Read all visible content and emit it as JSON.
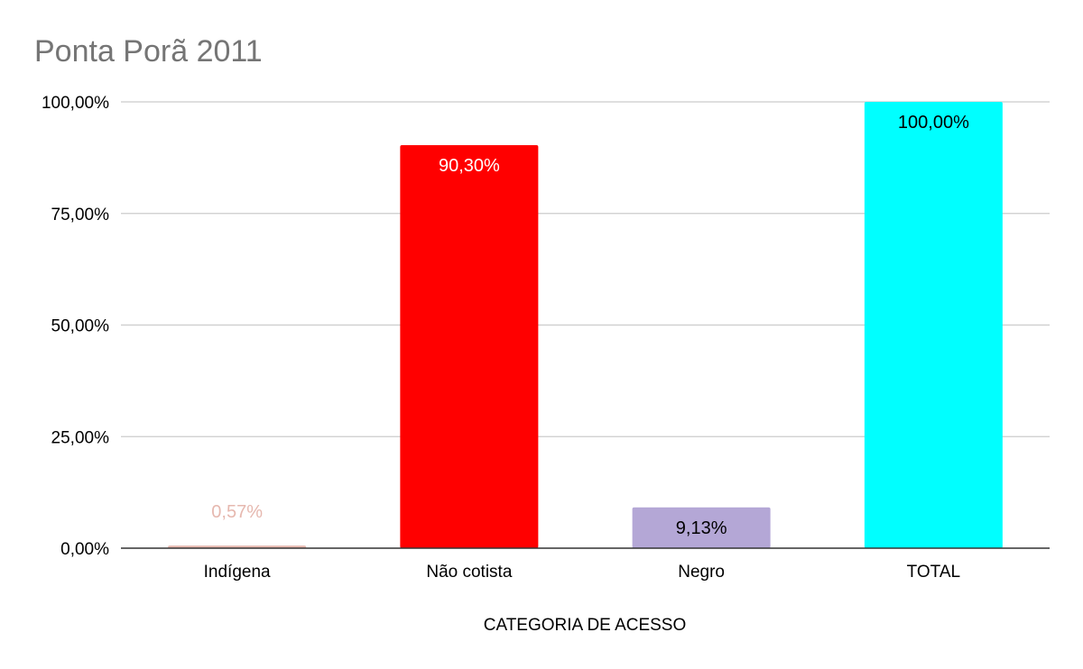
{
  "chart_data": {
    "type": "bar",
    "title": "Ponta Porã 2011",
    "xlabel": "CATEGORIA DE ACESSO",
    "ylabel": "",
    "ylim": [
      0,
      100
    ],
    "y_ticks": [
      "0,00%",
      "25,00%",
      "50,00%",
      "75,00%",
      "100,00%"
    ],
    "y_tick_values": [
      0,
      25,
      50,
      75,
      100
    ],
    "grid": true,
    "categories": [
      "Indígena",
      "Não cotista",
      "Negro",
      "TOTAL"
    ],
    "values": [
      0.57,
      90.3,
      9.13,
      100.0
    ],
    "data_labels": [
      "0,57%",
      "90,30%",
      "9,13%",
      "100,00%"
    ],
    "colors": [
      "#e6b8af",
      "#ff0000",
      "#b4a7d6",
      "#00ffff"
    ],
    "label_colors": [
      "#e6b8af",
      "#ffffff",
      "#000000",
      "#000000"
    ]
  }
}
